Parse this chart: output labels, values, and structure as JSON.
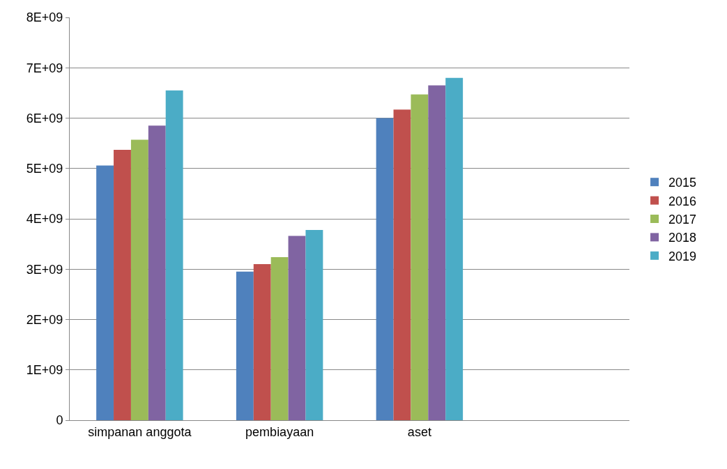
{
  "chart_data": {
    "type": "bar",
    "categories": [
      "simpanan anggota",
      "pembiayaan",
      "aset",
      null
    ],
    "series": [
      {
        "name": "2015",
        "color": "#4f81bd",
        "values": [
          5060000000,
          2950000000,
          6000000000,
          null
        ]
      },
      {
        "name": "2016",
        "color": "#c0504d",
        "values": [
          5370000000,
          3100000000,
          6170000000,
          null
        ]
      },
      {
        "name": "2017",
        "color": "#9bbb59",
        "values": [
          5570000000,
          3240000000,
          6470000000,
          null
        ]
      },
      {
        "name": "2018",
        "color": "#8064a2",
        "values": [
          5850000000,
          3660000000,
          6650000000,
          null
        ]
      },
      {
        "name": "2019",
        "color": "#4bacc6",
        "values": [
          6550000000,
          3780000000,
          6800000000,
          null
        ]
      }
    ],
    "ylim": [
      0,
      8000000000
    ],
    "yticks": [
      0,
      {
        "value": 1000000000,
        "label": "1E+09"
      },
      {
        "value": 2000000000,
        "label": "2E+09"
      },
      {
        "value": 3000000000,
        "label": "3E+09"
      },
      {
        "value": 4000000000,
        "label": "4E+09"
      },
      {
        "value": 5000000000,
        "label": "5E+09"
      },
      {
        "value": 6000000000,
        "label": "6E+09"
      },
      {
        "value": 7000000000,
        "label": "7E+09"
      },
      {
        "value": 8000000000,
        "label": "8E+09"
      }
    ],
    "grid": "y",
    "legend": "right"
  }
}
